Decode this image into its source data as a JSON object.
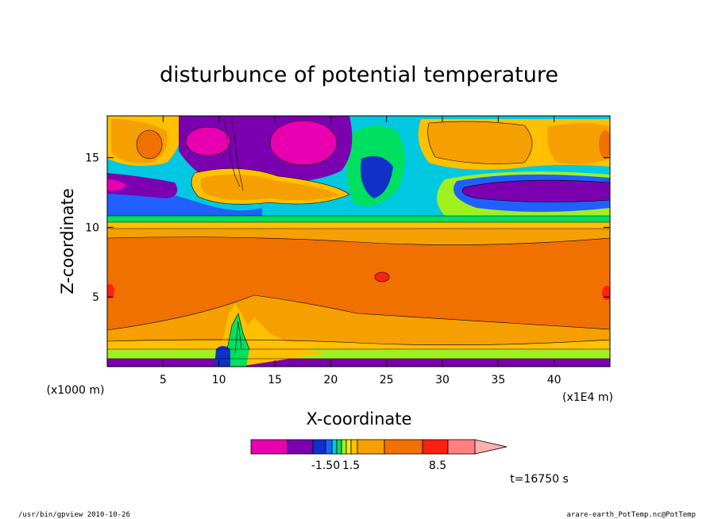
{
  "chart_data": {
    "type": "heatmap",
    "title": "disturbunce of potential temperature",
    "xlabel": "X-coordinate",
    "ylabel": "Z-coordinate",
    "x_unit": "(x1E4 m)",
    "y_unit": "(x1000 m)",
    "xlim": [
      0,
      45
    ],
    "ylim": [
      0,
      18
    ],
    "x_ticks": [
      5,
      10,
      15,
      20,
      25,
      30,
      35,
      40
    ],
    "y_ticks": [
      5,
      10,
      15
    ],
    "colorbar": {
      "colors": [
        "#e800b0",
        "#7a00b0",
        "#1030c8",
        "#2060ff",
        "#00c8e0",
        "#00e060",
        "#a0f020",
        "#f0f000",
        "#ffc000",
        "#f5a000",
        "#f07000",
        "#ff2010",
        "#ff8080",
        "#ffb0b0"
      ],
      "labels": [
        "-1.50",
        "1.5",
        "8.5"
      ]
    },
    "time_label": "t=16750 s"
  },
  "footer": {
    "left": "/usr/bin/gpview   2010-10-26",
    "right": "arare-earth_PotTemp.nc@PotTemp"
  }
}
